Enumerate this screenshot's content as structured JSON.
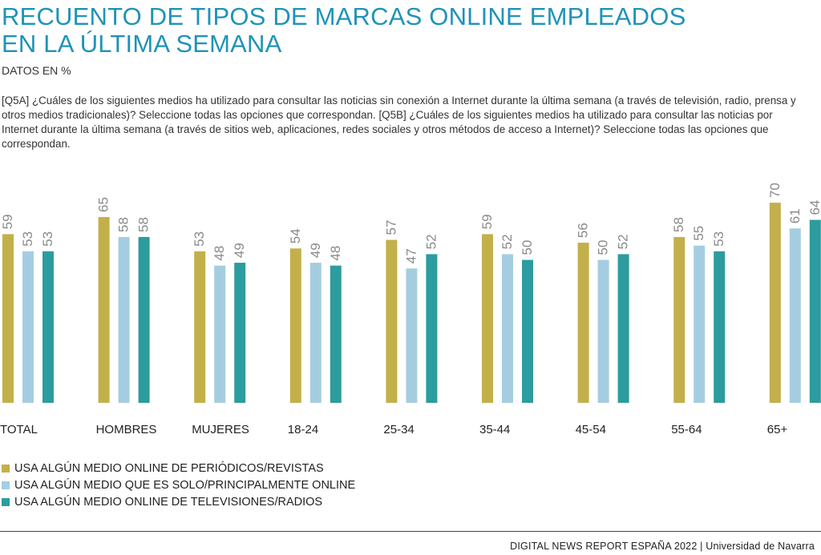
{
  "header": {
    "title_line1": "RECUENTO DE TIPOS DE MARCAS ONLINE EMPLEADOS",
    "title_line2": "EN LA ÚLTIMA SEMANA",
    "subtitle": "DATOS EN %",
    "question": "[Q5A] ¿Cuáles de los siguientes medios ha utilizado para consultar las noticias sin conexión a Internet durante la última semana (a través de televisión, radio, prensa y otros medios tradicionales)? Seleccione todas las opciones que correspondan. [Q5B] ¿Cuáles de los siguientes medios ha utilizado para consultar las noticias por Internet durante la última semana (a través de sitios web, aplicaciones, redes sociales y otros métodos de acceso a Internet)? Seleccione todas las opciones que correspondan."
  },
  "chart_data": {
    "type": "bar",
    "title": "RECUENTO DE TIPOS DE MARCAS ONLINE EMPLEADOS EN LA ÚLTIMA SEMANA",
    "subtitle": "DATOS EN %",
    "categories": [
      "TOTAL",
      "HOMBRES",
      "MUJERES",
      "18-24",
      "25-34",
      "35-44",
      "45-54",
      "55-64",
      "65+"
    ],
    "series": [
      {
        "name": "USA ALGÚN MEDIO ONLINE DE PERIÓDICOS/REVISTAS",
        "color": "#c2b04a",
        "values": [
          59,
          65,
          53,
          54,
          57,
          59,
          56,
          58,
          70
        ]
      },
      {
        "name": "USA ALGÚN MEDIO QUE ES SOLO/PRINCIPALMENTE ONLINE",
        "color": "#a5cde2",
        "values": [
          53,
          58,
          48,
          49,
          47,
          52,
          50,
          55,
          61
        ]
      },
      {
        "name": "USA ALGÚN MEDIO ONLINE DE TELEVISIONES/RADIOS",
        "color": "#2c9c9e",
        "values": [
          53,
          58,
          49,
          48,
          52,
          50,
          52,
          53,
          64
        ]
      }
    ],
    "ylim": [
      0,
      100
    ],
    "grid": false,
    "legend_position": "bottom-left",
    "data_labels": true
  },
  "footer": {
    "text": "DIGITAL NEWS REPORT ESPAÑA 2022 | Universidad de Navarra"
  }
}
